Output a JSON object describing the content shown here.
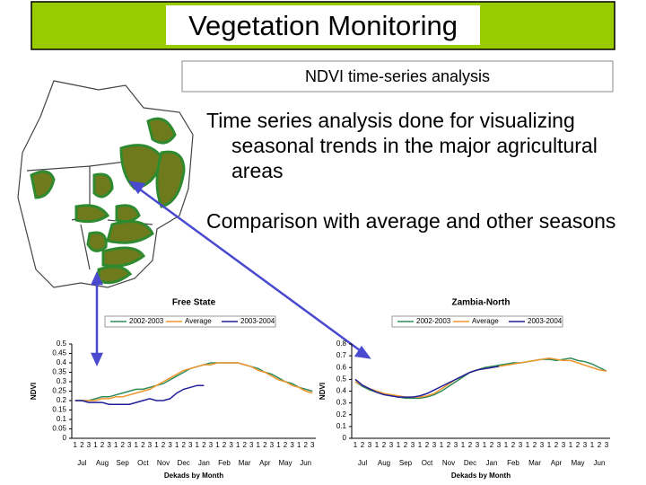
{
  "title": "Vegetation Monitoring",
  "subtitle": "NDVI time-series analysis",
  "bullets": [
    "Time series analysis done for visualizing seasonal trends in the major agricultural areas",
    "Comparison with average and other seasons"
  ],
  "chart_data": [
    {
      "type": "line",
      "title": "Free State",
      "x_label": "Dekads by Month",
      "y_label": "NDVI",
      "months": [
        "Jul",
        "Aug",
        "Sep",
        "Oct",
        "Nov",
        "Dec",
        "Jan",
        "Feb",
        "Mar",
        "Apr",
        "May",
        "Jun"
      ],
      "categories": [
        "1",
        "2",
        "3",
        "1",
        "2",
        "3",
        "1",
        "2",
        "3",
        "1",
        "2",
        "3",
        "1",
        "2",
        "3",
        "1",
        "2",
        "3",
        "1",
        "2",
        "3",
        "1",
        "2",
        "3",
        "1",
        "2",
        "3",
        "1",
        "2",
        "3",
        "1",
        "2",
        "3",
        "1",
        "2",
        "3"
      ],
      "ylim": [
        0,
        0.5
      ],
      "yticks": [
        0,
        0.05,
        0.1,
        0.15,
        0.2,
        0.25,
        0.3,
        0.35,
        0.4,
        0.45,
        0.5
      ],
      "series": [
        {
          "name": "2002-2003",
          "color": "#2e8b57",
          "values": [
            0.2,
            0.2,
            0.2,
            0.21,
            0.22,
            0.22,
            0.23,
            0.24,
            0.25,
            0.26,
            0.26,
            0.27,
            0.28,
            0.29,
            0.31,
            0.33,
            0.35,
            0.37,
            0.38,
            0.39,
            0.4,
            0.4,
            0.4,
            0.4,
            0.4,
            0.39,
            0.38,
            0.37,
            0.35,
            0.34,
            0.32,
            0.3,
            0.29,
            0.27,
            0.26,
            0.25
          ]
        },
        {
          "name": "Average",
          "color": "#f0962e",
          "values": [
            0.2,
            0.2,
            0.2,
            0.2,
            0.21,
            0.21,
            0.22,
            0.22,
            0.23,
            0.24,
            0.25,
            0.26,
            0.28,
            0.3,
            0.32,
            0.34,
            0.36,
            0.37,
            0.38,
            0.39,
            0.39,
            0.4,
            0.4,
            0.4,
            0.4,
            0.39,
            0.38,
            0.36,
            0.35,
            0.33,
            0.31,
            0.3,
            0.28,
            0.27,
            0.25,
            0.24
          ]
        },
        {
          "name": "2003-2004",
          "color": "#1f1f9a",
          "values": [
            0.2,
            0.2,
            0.19,
            0.19,
            0.19,
            0.18,
            0.18,
            0.18,
            0.18,
            0.19,
            0.2,
            0.21,
            0.2,
            0.2,
            0.21,
            0.24,
            0.26,
            0.27,
            0.28,
            0.28,
            null,
            null,
            null,
            null,
            null,
            null,
            null,
            null,
            null,
            null,
            null,
            null,
            null,
            null,
            null,
            null
          ]
        }
      ]
    },
    {
      "type": "line",
      "title": "Zambia-North",
      "x_label": "Dekads by Month",
      "y_label": "NDVI",
      "months": [
        "Jul",
        "Aug",
        "Sep",
        "Oct",
        "Nov",
        "Dec",
        "Jan",
        "Feb",
        "Mar",
        "Apr",
        "May",
        "Jun"
      ],
      "categories": [
        "1",
        "2",
        "3",
        "1",
        "2",
        "3",
        "1",
        "2",
        "3",
        "1",
        "2",
        "3",
        "1",
        "2",
        "3",
        "1",
        "2",
        "3",
        "1",
        "2",
        "3",
        "1",
        "2",
        "3",
        "1",
        "2",
        "3",
        "1",
        "2",
        "3",
        "1",
        "2",
        "3",
        "1",
        "2",
        "3"
      ],
      "ylim": [
        0,
        0.8
      ],
      "yticks": [
        0,
        0.1,
        0.2,
        0.3,
        0.4,
        0.5,
        0.6,
        0.7,
        0.8
      ],
      "series": [
        {
          "name": "2002-2003",
          "color": "#2e8b57",
          "values": [
            0.48,
            0.44,
            0.41,
            0.39,
            0.37,
            0.36,
            0.35,
            0.34,
            0.34,
            0.34,
            0.35,
            0.37,
            0.4,
            0.44,
            0.48,
            0.52,
            0.56,
            0.58,
            0.6,
            0.61,
            0.62,
            0.63,
            0.64,
            0.64,
            0.65,
            0.66,
            0.67,
            0.67,
            0.66,
            0.67,
            0.68,
            0.66,
            0.65,
            0.63,
            0.6,
            0.57
          ]
        },
        {
          "name": "Average",
          "color": "#f0962e",
          "values": [
            0.48,
            0.45,
            0.42,
            0.4,
            0.38,
            0.37,
            0.36,
            0.35,
            0.35,
            0.35,
            0.36,
            0.38,
            0.42,
            0.46,
            0.5,
            0.53,
            0.56,
            0.58,
            0.59,
            0.6,
            0.61,
            0.62,
            0.63,
            0.64,
            0.65,
            0.66,
            0.67,
            0.68,
            0.67,
            0.66,
            0.66,
            0.64,
            0.62,
            0.6,
            0.58,
            0.57
          ]
        },
        {
          "name": "2003-2004",
          "color": "#1f1f9a",
          "values": [
            0.5,
            0.45,
            0.42,
            0.39,
            0.37,
            0.36,
            0.35,
            0.35,
            0.35,
            0.36,
            0.38,
            0.41,
            0.44,
            0.47,
            0.5,
            0.53,
            0.56,
            0.58,
            0.59,
            0.6,
            0.61,
            null,
            null,
            null,
            null,
            null,
            null,
            null,
            null,
            null,
            null,
            null,
            null,
            null,
            null,
            null
          ]
        }
      ]
    }
  ]
}
